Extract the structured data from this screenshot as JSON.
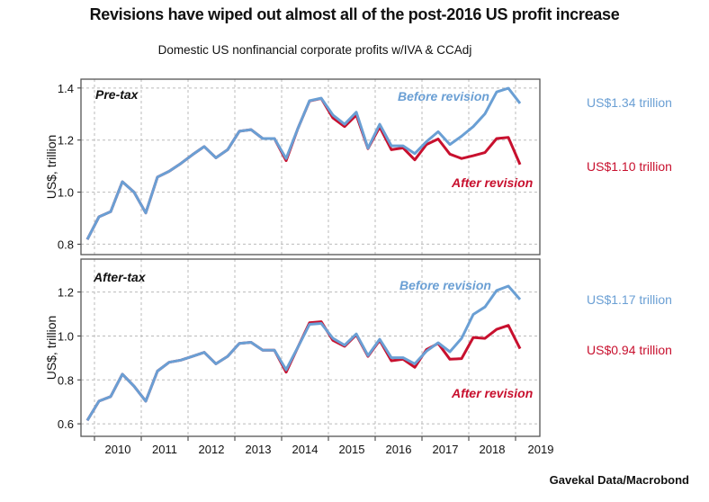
{
  "chart_data": [
    {
      "type": "line",
      "panel_label": "Pre-tax",
      "ylabel": "US$, trillion",
      "ylim": [
        0.76,
        1.434
      ],
      "yticks": [
        0.8,
        1.0,
        1.2,
        1.4
      ],
      "ytick_labels": [
        "0.8",
        "1.0",
        "1.2",
        "1.4"
      ],
      "grid": true,
      "x_start": "2009Q4",
      "x_end": "2019Q1",
      "frequency": "quarterly",
      "series": [
        {
          "name": "Before revision",
          "color": "#6a9fd4",
          "end_label": "US$1.34 trillion",
          "values": [
            0.818,
            0.905,
            0.925,
            1.04,
            1.0,
            0.92,
            1.058,
            1.08,
            1.11,
            1.144,
            1.175,
            1.132,
            1.163,
            1.234,
            1.24,
            1.206,
            1.206,
            1.129,
            1.244,
            1.351,
            1.361,
            1.296,
            1.261,
            1.307,
            1.169,
            1.261,
            1.178,
            1.178,
            1.148,
            1.194,
            1.232,
            1.183,
            1.215,
            1.252,
            1.301,
            1.385,
            1.399,
            1.341
          ]
        },
        {
          "name": "After revision",
          "color": "#c8102e",
          "end_label": "US$1.10 trillion",
          "values": [
            0.818,
            0.905,
            0.925,
            1.04,
            1.0,
            0.92,
            1.058,
            1.08,
            1.11,
            1.144,
            1.175,
            1.132,
            1.163,
            1.234,
            1.24,
            1.206,
            1.206,
            1.121,
            1.244,
            1.35,
            1.36,
            1.285,
            1.252,
            1.296,
            1.167,
            1.25,
            1.163,
            1.17,
            1.124,
            1.183,
            1.204,
            1.146,
            1.129,
            1.14,
            1.152,
            1.206,
            1.21,
            1.106
          ]
        }
      ]
    },
    {
      "type": "line",
      "panel_label": "After-tax",
      "ylabel": "US$, trillion",
      "ylim": [
        0.543,
        1.35
      ],
      "yticks": [
        0.6,
        0.8,
        1.0,
        1.2
      ],
      "ytick_labels": [
        "0.6",
        "0.8",
        "1.0",
        "1.2"
      ],
      "grid": true,
      "x_start": "2009Q4",
      "x_end": "2019Q1",
      "frequency": "quarterly",
      "xtick_labels": [
        "2010",
        "2011",
        "2012",
        "2013",
        "2014",
        "2015",
        "2016",
        "2017",
        "2018",
        "2019"
      ],
      "series": [
        {
          "name": "Before revision",
          "color": "#6a9fd4",
          "end_label": "US$1.17 trillion",
          "values": [
            0.615,
            0.703,
            0.724,
            0.826,
            0.771,
            0.703,
            0.84,
            0.88,
            0.89,
            0.907,
            0.925,
            0.873,
            0.907,
            0.966,
            0.971,
            0.935,
            0.935,
            0.846,
            0.948,
            1.053,
            1.057,
            0.989,
            0.958,
            1.009,
            0.911,
            0.985,
            0.901,
            0.901,
            0.873,
            0.931,
            0.969,
            0.928,
            0.989,
            1.098,
            1.132,
            1.207,
            1.227,
            1.166
          ]
        },
        {
          "name": "After revision",
          "color": "#c8102e",
          "end_label": "US$0.94 trillion",
          "values": [
            0.615,
            0.703,
            0.724,
            0.826,
            0.771,
            0.703,
            0.84,
            0.88,
            0.89,
            0.907,
            0.925,
            0.873,
            0.907,
            0.966,
            0.971,
            0.935,
            0.935,
            0.835,
            0.948,
            1.06,
            1.065,
            0.98,
            0.953,
            1.005,
            0.907,
            0.98,
            0.887,
            0.894,
            0.857,
            0.938,
            0.966,
            0.894,
            0.897,
            0.993,
            0.989,
            1.03,
            1.048,
            0.942
          ]
        }
      ]
    }
  ],
  "title": "Revisions have wiped out almost all of the post-2016 US profit increase",
  "subtitle": "Domestic US nonfinancial corporate profits w/IVA & CCAdj",
  "source": "Gavekal Data/Macrobond"
}
